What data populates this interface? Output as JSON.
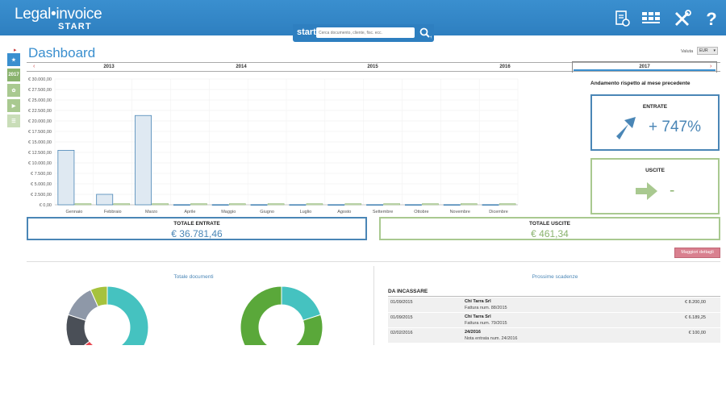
{
  "app": {
    "logo_main": "Legal•invoice",
    "logo_sub": "START"
  },
  "search": {
    "label": "start",
    "placeholder": "Cerca documento, cliente, fisc. ecc."
  },
  "icons": [
    "document-settings-icon",
    "calendar-grid-icon",
    "tools-icon",
    "help-icon"
  ],
  "rail": {
    "year_label": "2017"
  },
  "header": {
    "title": "Dashboard",
    "valuta_label": "Valuta",
    "valuta_value": "EUR"
  },
  "years": [
    "2013",
    "2014",
    "2015",
    "2016",
    "2017"
  ],
  "active_year": "2017",
  "chart_data": {
    "type": "bar",
    "categories": [
      "Gennaio",
      "Febbraio",
      "Marzo",
      "Aprile",
      "Maggio",
      "Giugno",
      "Luglio",
      "Agosto",
      "Settembre",
      "Ottobre",
      "Novembre",
      "Dicembre"
    ],
    "series": [
      {
        "values": [
          13000,
          2500,
          21300,
          50,
          50,
          50,
          50,
          50,
          50,
          50,
          50,
          50
        ],
        "color": "#4a86b6"
      },
      {
        "values": [
          150,
          100,
          150,
          50,
          50,
          50,
          50,
          50,
          50,
          50,
          50,
          50
        ],
        "color": "#8ab36e"
      }
    ],
    "ylim": [
      0,
      30000
    ],
    "yticks": [
      "€ 30.000,00",
      "€ 27.500,00",
      "€ 25.000,00",
      "€ 22.500,00",
      "€ 20.000,00",
      "€ 17.500,00",
      "€ 15.000,00",
      "€ 12.500,00",
      "€ 10.000,00",
      "€ 7.500,00",
      "€ 5.000,00",
      "€ 2.500,00",
      "€ 0,00"
    ],
    "grid": true
  },
  "andamento": {
    "title": "Andamento rispetto al mese precedente",
    "entrate_label": "ENTRATE",
    "entrate_value": "+ 747%",
    "uscite_label": "USCITE",
    "uscite_value": "-"
  },
  "totals": {
    "entrate_label": "TOTALE ENTRATE",
    "entrate_value": "€ 36.781,46",
    "uscite_label": "TOTALE USCITE",
    "uscite_value": "€ 461,34"
  },
  "details_button": "Maggiori dettagli",
  "documents": {
    "title": "Totale documenti",
    "donut1": [
      {
        "value": 45,
        "color": "#45c2c0"
      },
      {
        "value": 7,
        "color": "#5bc0c8"
      },
      {
        "value": 6,
        "color": "#e8454f"
      },
      {
        "value": 14,
        "color": "#4a4f57"
      },
      {
        "value": 12,
        "color": "#8e98a8"
      },
      {
        "value": 6,
        "color": "#a6c23d"
      }
    ],
    "donut2": [
      {
        "value": 20,
        "color": "#45c2c0"
      },
      {
        "value": 80,
        "color": "#5aa83a"
      }
    ]
  },
  "deadlines": {
    "title": "Prossime scadenze",
    "section": "DA INCASSARE",
    "rows": [
      {
        "date": "01/09/2015",
        "name": "Chi Tarra Srl",
        "sub": "Fattura num. 88/2015",
        "amount": "€ 8.200,00"
      },
      {
        "date": "01/09/2015",
        "name": "Chi Tarra Srl",
        "sub": "Fattura num. 79/2015",
        "amount": "€ 6.189,25"
      },
      {
        "date": "02/02/2016",
        "name": "24/2016",
        "sub": "Nota entrata num. 24/2016",
        "amount": "€ 100,00"
      }
    ]
  }
}
